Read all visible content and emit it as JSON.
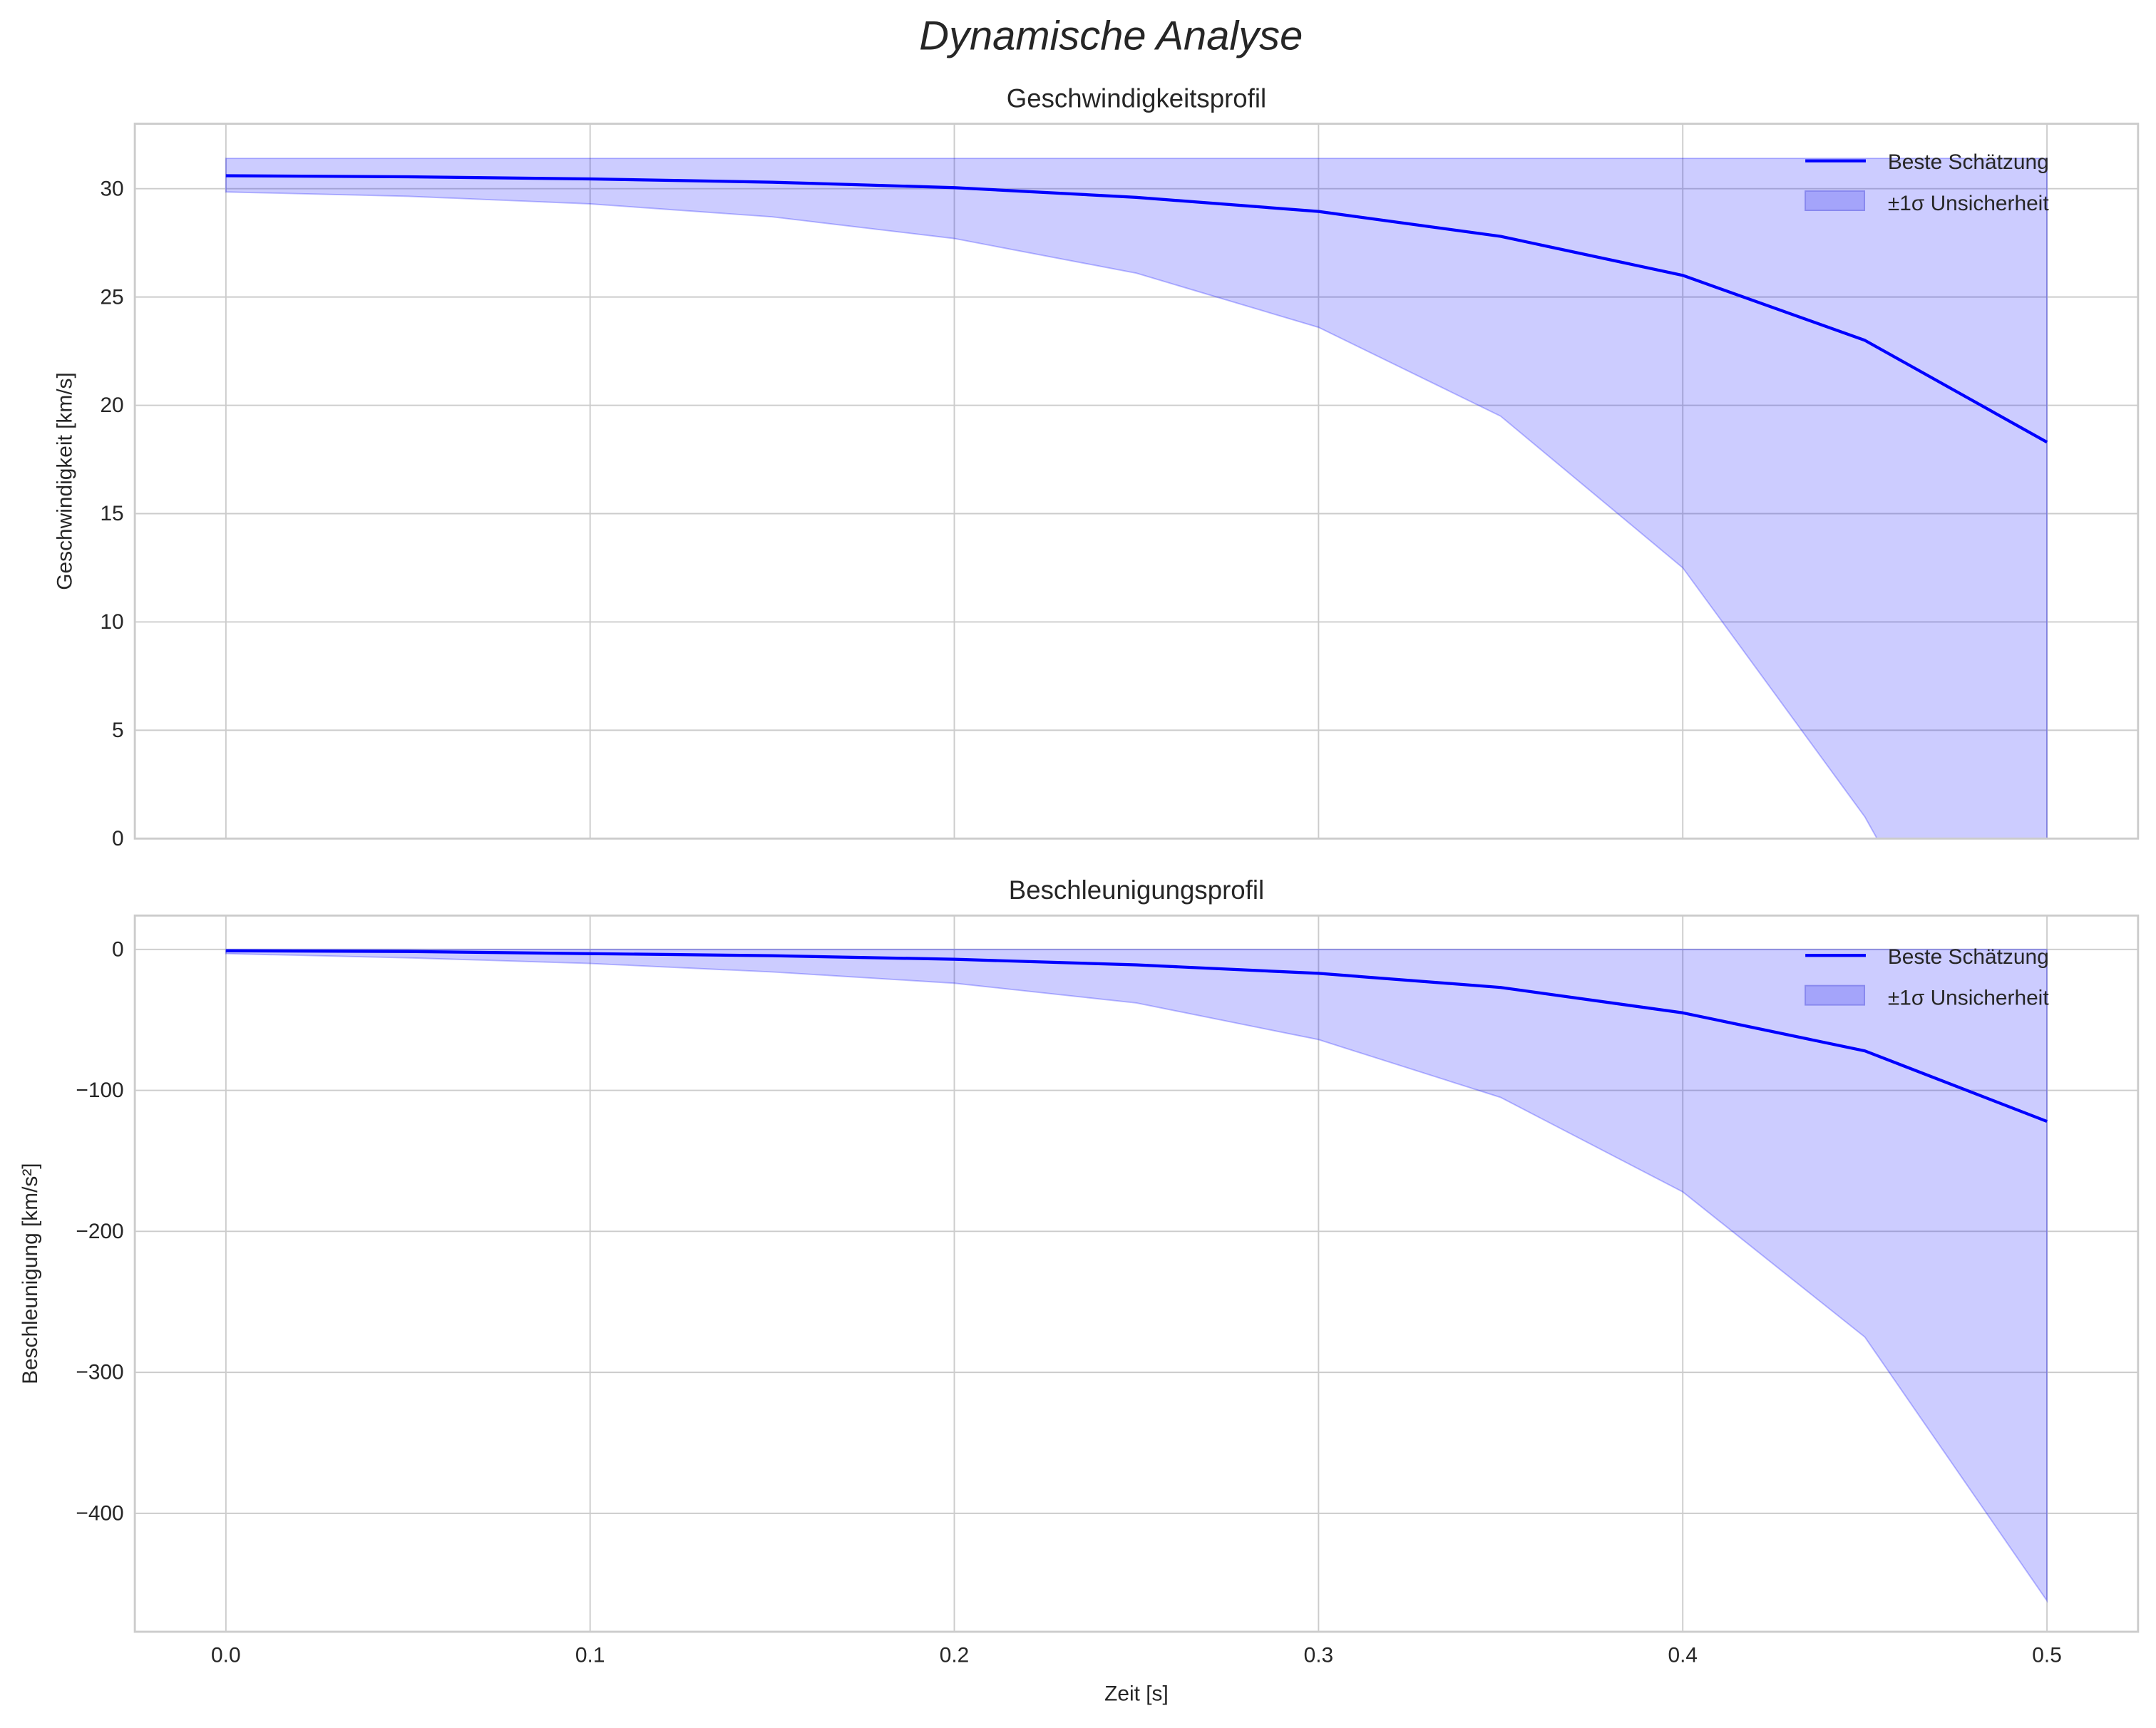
{
  "chart_data": [
    {
      "type": "line",
      "suptitle": "Dynamische Analyse",
      "title": "Geschwindigkeitsprofil",
      "xlabel": "",
      "ylabel": "Geschwindigkeit [km/s]",
      "xlim": [
        -0.025,
        0.525
      ],
      "ylim": [
        0,
        33
      ],
      "xticks": [
        "0.0",
        "0.1",
        "0.2",
        "0.3",
        "0.4",
        "0.5"
      ],
      "xtick_values": [
        0,
        0.1,
        0.2,
        0.3,
        0.4,
        0.5
      ],
      "yticks": [
        "0",
        "5",
        "10",
        "15",
        "20",
        "25",
        "30"
      ],
      "ytick_values": [
        0,
        5,
        10,
        15,
        20,
        25,
        30
      ],
      "grid": true,
      "legend": {
        "placement": "top-right",
        "entries": [
          "Beste Schätzung",
          "±1σ Unsicherheit"
        ]
      },
      "x": [
        0,
        0.05,
        0.1,
        0.15,
        0.2,
        0.25,
        0.3,
        0.35,
        0.4,
        0.45,
        0.5
      ],
      "series": [
        {
          "name": "Beste Schätzung",
          "values": [
            30.6,
            30.55,
            30.45,
            30.3,
            30.05,
            29.6,
            28.95,
            27.8,
            26.0,
            23.0,
            18.3
          ],
          "color": "#0000ff"
        },
        {
          "name": "±1σ Unsicherheit",
          "lower": [
            29.85,
            29.65,
            29.3,
            28.7,
            27.7,
            26.1,
            23.6,
            19.5,
            12.5,
            1.0,
            -14
          ],
          "upper": [
            31.4,
            31.4,
            31.4,
            31.4,
            31.4,
            31.4,
            31.4,
            31.4,
            31.4,
            31.4,
            31.4
          ],
          "color": "#0000ff",
          "alpha": 0.2
        }
      ]
    },
    {
      "type": "line",
      "title": "Beschleunigungsprofil",
      "xlabel": "Zeit [s]",
      "ylabel": "Beschleunigung [km/s²]",
      "xlim": [
        -0.025,
        0.525
      ],
      "ylim": [
        -484,
        24
      ],
      "xticks": [
        "0.0",
        "0.1",
        "0.2",
        "0.3",
        "0.4",
        "0.5"
      ],
      "xtick_values": [
        0,
        0.1,
        0.2,
        0.3,
        0.4,
        0.5
      ],
      "yticks": [
        "−400",
        "−300",
        "−200",
        "−100",
        "0"
      ],
      "ytick_values": [
        -400,
        -300,
        -200,
        -100,
        0
      ],
      "grid": true,
      "legend": {
        "placement": "top-right",
        "entries": [
          "Beste Schätzung",
          "±1σ Unsicherheit"
        ]
      },
      "x": [
        0,
        0.05,
        0.1,
        0.15,
        0.2,
        0.25,
        0.3,
        0.35,
        0.4,
        0.45,
        0.5
      ],
      "series": [
        {
          "name": "Beste Schätzung",
          "values": [
            -1,
            -1.5,
            -3,
            -4.5,
            -7,
            -11,
            -17,
            -27,
            -45,
            -72,
            -122
          ],
          "color": "#0000ff"
        },
        {
          "name": "±1σ Unsicherheit",
          "lower": [
            -3,
            -6,
            -10,
            -16,
            -24,
            -38,
            -64,
            -105,
            -172,
            -275,
            -462
          ],
          "upper": [
            0,
            0,
            0,
            0,
            0,
            0,
            0,
            0,
            0,
            0,
            0
          ],
          "color": "#0000ff",
          "alpha": 0.2
        }
      ]
    }
  ]
}
